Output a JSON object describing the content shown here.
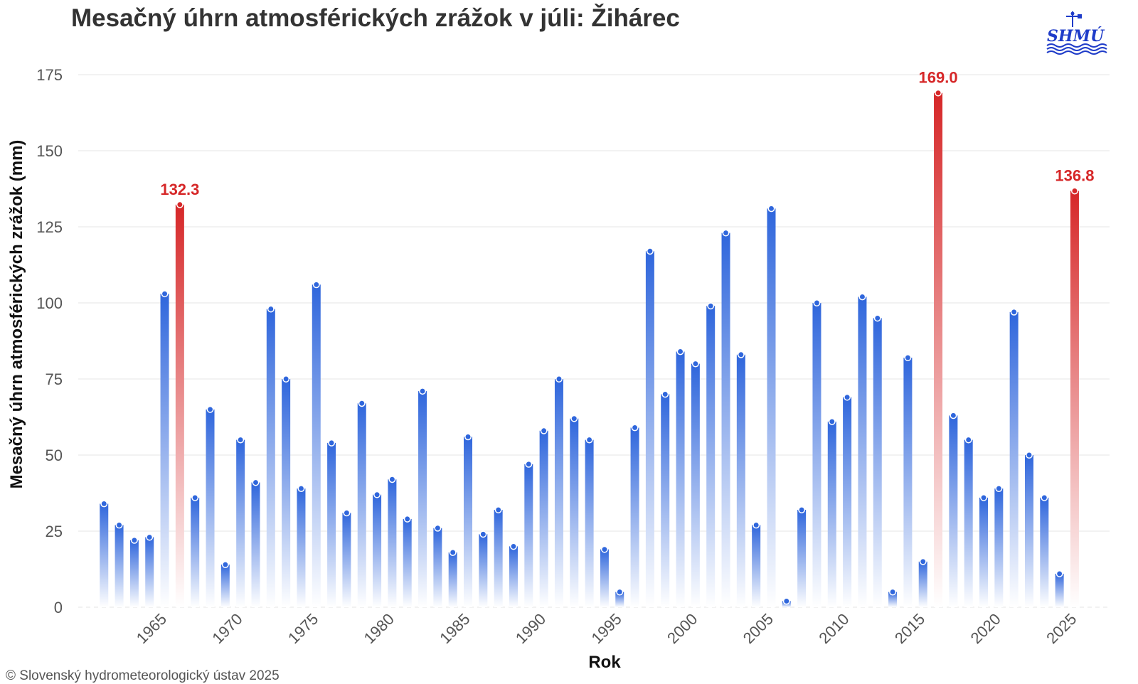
{
  "title": "Mesačný úhrn atmosférických zrážok v júli: Žihárec",
  "copyright": "© Slovenský hydrometeorologický ústav 2025",
  "logo": {
    "text": "SHMÚ"
  },
  "colors": {
    "normal_bar": "#3a6fdc",
    "record_bar": "#d62728",
    "record_label": "#d62728",
    "grid": "#e6e6e6"
  },
  "chart_data": {
    "type": "bar",
    "title": "Mesačný úhrn atmosférických zrážok v júli: Žihárec",
    "xlabel": "Rok",
    "ylabel": "Mesačný úhrn atmosférických zrážok (mm)",
    "ylim": [
      0,
      175
    ],
    "yticks": [
      0,
      25,
      50,
      75,
      100,
      125,
      150,
      175
    ],
    "xlim": [
      1959.3,
      2027.3
    ],
    "xticks": [
      1965,
      1970,
      1975,
      1980,
      1985,
      1990,
      1995,
      2000,
      2005,
      2010,
      2015,
      2020,
      2025
    ],
    "grid": true,
    "years": [
      1961,
      1962,
      1963,
      1964,
      1965,
      1966,
      1967,
      1968,
      1969,
      1970,
      1971,
      1972,
      1973,
      1974,
      1975,
      1976,
      1977,
      1978,
      1979,
      1980,
      1981,
      1982,
      1983,
      1984,
      1985,
      1986,
      1987,
      1988,
      1989,
      1990,
      1991,
      1992,
      1993,
      1994,
      1995,
      1996,
      1997,
      1998,
      1999,
      2000,
      2001,
      2002,
      2003,
      2004,
      2005,
      2006,
      2007,
      2008,
      2009,
      2010,
      2011,
      2012,
      2013,
      2014,
      2015,
      2016,
      2017,
      2018,
      2019,
      2020,
      2021,
      2022,
      2023,
      2024,
      2025
    ],
    "values": [
      34,
      27,
      22,
      23,
      103,
      132.3,
      36,
      65,
      14,
      55,
      41,
      98,
      75,
      39,
      106,
      54,
      31,
      67,
      37,
      42,
      29,
      71,
      26,
      18,
      56,
      24,
      32,
      20,
      47,
      58,
      75,
      62,
      55,
      19,
      5,
      59,
      117,
      70,
      84,
      80,
      99,
      123,
      83,
      27,
      131,
      2,
      32,
      100,
      61,
      69,
      102,
      95,
      5,
      82,
      15,
      169,
      63,
      55,
      36,
      39,
      97,
      50,
      36,
      11,
      136.8
    ],
    "records": [
      {
        "year": 1966,
        "value": 132.3,
        "label": "132.3"
      },
      {
        "year": 2016,
        "value": 169,
        "label": "169.0"
      },
      {
        "year": 2025,
        "value": 136.8,
        "label": "136.8"
      }
    ]
  }
}
